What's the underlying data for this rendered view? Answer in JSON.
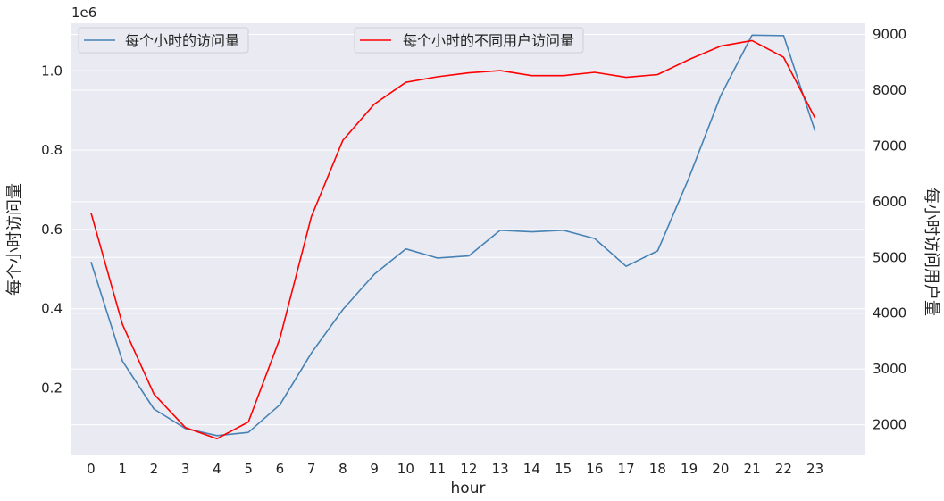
{
  "chart_data": {
    "type": "line",
    "x": [
      0,
      1,
      2,
      3,
      4,
      5,
      6,
      7,
      8,
      9,
      10,
      11,
      12,
      13,
      14,
      15,
      16,
      17,
      18,
      19,
      20,
      21,
      22,
      23
    ],
    "xlabel": "hour",
    "grid": true,
    "left_axis": {
      "label": "每个小时访问量",
      "offset_label": "1e6",
      "ticks": [
        "0.2",
        "0.4",
        "0.6",
        "0.8",
        "1.0"
      ],
      "tick_values": [
        0.2,
        0.4,
        0.6,
        0.8,
        1.0
      ],
      "ylim": [
        0.03,
        1.12
      ]
    },
    "right_axis": {
      "label": "每小时访问用户量",
      "ticks": [
        "2000",
        "3000",
        "4000",
        "5000",
        "6000",
        "7000",
        "8000",
        "9000"
      ],
      "tick_values": [
        2000,
        3000,
        4000,
        5000,
        6000,
        7000,
        8000,
        9000
      ],
      "ylim": [
        1450,
        9200
      ]
    },
    "series": [
      {
        "name": "每个小时的访问量",
        "axis": "left",
        "color": "#4682b4",
        "values": [
          0.518,
          0.268,
          0.147,
          0.098,
          0.08,
          0.088,
          0.158,
          0.288,
          0.398,
          0.487,
          0.551,
          0.528,
          0.533,
          0.598,
          0.594,
          0.598,
          0.577,
          0.507,
          0.546,
          0.731,
          0.937,
          1.09,
          1.089,
          0.848
        ],
        "legend_position": "upper-left"
      },
      {
        "name": "每个小时的不同用户访问量",
        "axis": "right",
        "color": "#ff0000",
        "values": [
          5800,
          3800,
          2550,
          1950,
          1750,
          2050,
          3550,
          5730,
          7100,
          7750,
          8140,
          8240,
          8310,
          8350,
          8260,
          8260,
          8320,
          8230,
          8280,
          8550,
          8790,
          8890,
          8590,
          7500
        ],
        "legend_position": "upper-center"
      }
    ]
  }
}
